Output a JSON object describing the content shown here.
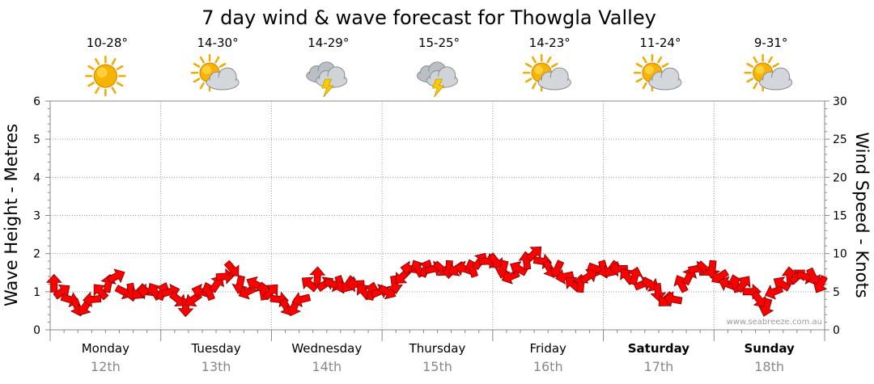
{
  "chart_data": {
    "type": "line",
    "title": "7 day wind & wave forecast for Thowgla Valley",
    "ylabel_left": "Wave Height - Metres",
    "ylabel_right": "Wind Speed - Knots",
    "ylim_left": [
      0,
      6
    ],
    "ylim_right": [
      0,
      30
    ],
    "yticks_left": [
      "0",
      "1",
      "2",
      "3",
      "4",
      "5",
      "6"
    ],
    "yticks_right": [
      "0",
      "5",
      "10",
      "15",
      "20",
      "25",
      "30"
    ],
    "grid": true,
    "watermark": "www.seabreeze.com.au",
    "days": [
      {
        "name": "Monday",
        "date": "12th",
        "temp": "10-28°",
        "icon": "sun-icon",
        "bold": false
      },
      {
        "name": "Tuesday",
        "date": "13th",
        "temp": "14-30°",
        "icon": "partly-cloudy-icon",
        "bold": false
      },
      {
        "name": "Wednesday",
        "date": "14th",
        "temp": "14-29°",
        "icon": "thunderstorm-icon",
        "bold": false
      },
      {
        "name": "Thursday",
        "date": "15th",
        "temp": "15-25°",
        "icon": "thunderstorm-icon",
        "bold": false
      },
      {
        "name": "Friday",
        "date": "16th",
        "temp": "14-23°",
        "icon": "partly-cloudy-icon",
        "bold": false
      },
      {
        "name": "Saturday",
        "date": "17th",
        "temp": "11-24°",
        "icon": "partly-cloudy-icon",
        "bold": true
      },
      {
        "name": "Sunday",
        "date": "18th",
        "temp": "9-31°",
        "icon": "partly-cloudy-icon",
        "bold": true
      }
    ],
    "series": [
      {
        "name": "Wind Speed - Knots",
        "color": "#ff0000",
        "marker": "wind-direction-arrow",
        "values": [
          6,
          5,
          4,
          3,
          3,
          4,
          5,
          6,
          7,
          5,
          5,
          5,
          5,
          5,
          5,
          5,
          4,
          3,
          4,
          5,
          5,
          6,
          7,
          8,
          6,
          5,
          6,
          5,
          5,
          4,
          3,
          3,
          4,
          6,
          7,
          6,
          6,
          6,
          6,
          6,
          5,
          5,
          5,
          5,
          6,
          7,
          8,
          8,
          8,
          8,
          8,
          8,
          8,
          8,
          8,
          9,
          9,
          9,
          8,
          7,
          8,
          9,
          10,
          9,
          8,
          8,
          7,
          6,
          6,
          7,
          8,
          8,
          8,
          8,
          7,
          7,
          6,
          6,
          5,
          4,
          4,
          6,
          7,
          8,
          8,
          8,
          7,
          6,
          6,
          6,
          5,
          4,
          3,
          5,
          6,
          7,
          7,
          7,
          7,
          6
        ]
      }
    ]
  }
}
